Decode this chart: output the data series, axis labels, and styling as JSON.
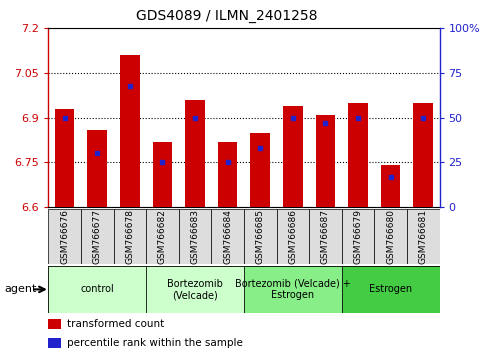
{
  "title": "GDS4089 / ILMN_2401258",
  "samples": [
    "GSM766676",
    "GSM766677",
    "GSM766678",
    "GSM766682",
    "GSM766683",
    "GSM766684",
    "GSM766685",
    "GSM766686",
    "GSM766687",
    "GSM766679",
    "GSM766680",
    "GSM766681"
  ],
  "transformed_counts": [
    6.93,
    6.86,
    7.11,
    6.82,
    6.96,
    6.82,
    6.85,
    6.94,
    6.91,
    6.95,
    6.74,
    6.95
  ],
  "percentile_ranks": [
    50,
    30,
    68,
    25,
    50,
    25,
    33,
    50,
    47,
    50,
    17,
    50
  ],
  "ylim_left": [
    6.6,
    7.2
  ],
  "ylim_right": [
    0,
    100
  ],
  "yticks_left": [
    6.6,
    6.75,
    6.9,
    7.05,
    7.2
  ],
  "yticks_right": [
    0,
    25,
    50,
    75,
    100
  ],
  "bar_color": "#cc0000",
  "dot_color": "#2222cc",
  "bar_width": 0.6,
  "groups": [
    {
      "label": "control",
      "indices": [
        0,
        1,
        2
      ],
      "color": "#ccffcc"
    },
    {
      "label": "Bortezomib\n(Velcade)",
      "indices": [
        3,
        4,
        5
      ],
      "color": "#ccffcc"
    },
    {
      "label": "Bortezomib (Velcade) +\nEstrogen",
      "indices": [
        6,
        7,
        8
      ],
      "color": "#88ee88"
    },
    {
      "label": "Estrogen",
      "indices": [
        9,
        10,
        11
      ],
      "color": "#44cc44"
    }
  ],
  "legend_items": [
    {
      "label": "transformed count",
      "color": "#cc0000"
    },
    {
      "label": "percentile rank within the sample",
      "color": "#2222cc"
    }
  ],
  "left_axis_color": "#cc0000",
  "right_axis_color": "#2222cc",
  "base_value": 6.6
}
